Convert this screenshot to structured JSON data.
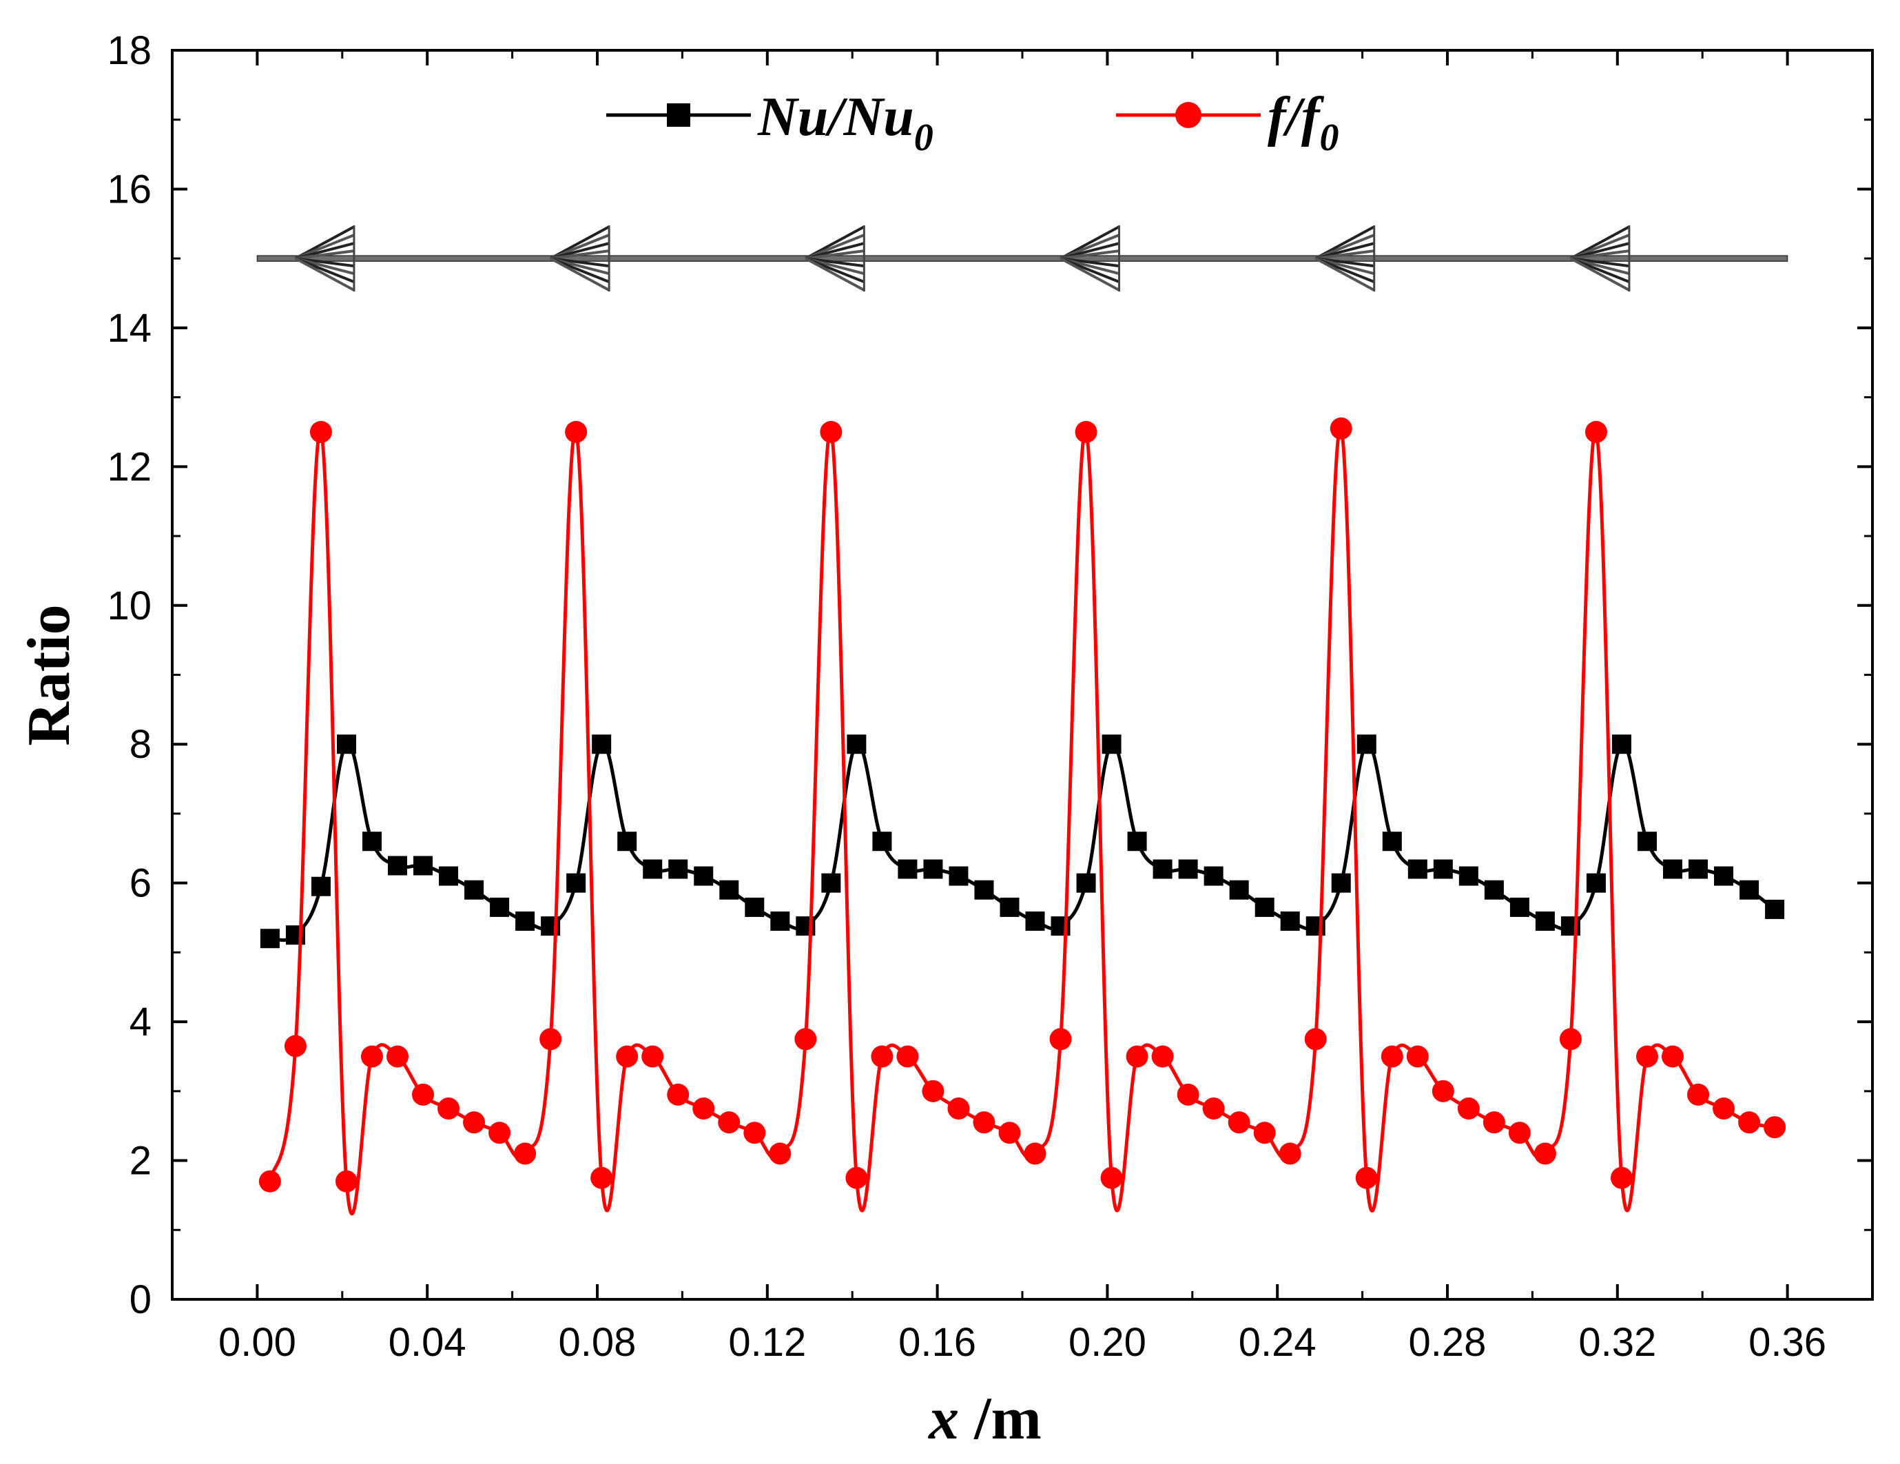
{
  "chart_data": {
    "type": "line",
    "title": "",
    "xlabel": {
      "var": "x",
      "unit": " /m"
    },
    "ylabel": "Ratio",
    "xlim": [
      -0.02,
      0.38
    ],
    "ylim": [
      0,
      18
    ],
    "xticks": [
      0.0,
      0.04,
      0.08,
      0.12,
      0.16,
      0.2,
      0.24,
      0.28,
      0.32,
      0.36
    ],
    "xtick_labels": [
      "0.00",
      "0.04",
      "0.08",
      "0.12",
      "0.16",
      "0.20",
      "0.24",
      "0.28",
      "0.32",
      "0.36"
    ],
    "yticks": [
      0,
      2,
      4,
      6,
      8,
      10,
      12,
      14,
      16,
      18
    ],
    "ytick_labels": [
      "0",
      "2",
      "4",
      "6",
      "8",
      "10",
      "12",
      "14",
      "16",
      "18"
    ],
    "legend_position": "top-center",
    "series": [
      {
        "name": "Nu/Nu0",
        "legend_main": "Nu/Nu",
        "legend_sub": "0",
        "color": "#000000",
        "marker": "square",
        "x": [
          0.003,
          0.009,
          0.015,
          0.021,
          0.027,
          0.033,
          0.039,
          0.045,
          0.051,
          0.057,
          0.063,
          0.069,
          0.075,
          0.081,
          0.087,
          0.093,
          0.099,
          0.105,
          0.111,
          0.117,
          0.123,
          0.129,
          0.135,
          0.141,
          0.147,
          0.153,
          0.159,
          0.165,
          0.171,
          0.177,
          0.183,
          0.189,
          0.195,
          0.201,
          0.207,
          0.213,
          0.219,
          0.225,
          0.231,
          0.237,
          0.243,
          0.249,
          0.255,
          0.261,
          0.267,
          0.273,
          0.279,
          0.285,
          0.291,
          0.297,
          0.303,
          0.309,
          0.315,
          0.321,
          0.327,
          0.333,
          0.339,
          0.345,
          0.351,
          0.357
        ],
        "y": [
          5.2,
          5.25,
          5.95,
          8.0,
          6.6,
          6.25,
          6.25,
          6.1,
          5.9,
          5.65,
          5.45,
          5.38,
          6.0,
          8.0,
          6.6,
          6.2,
          6.2,
          6.1,
          5.9,
          5.65,
          5.45,
          5.38,
          6.0,
          8.0,
          6.6,
          6.2,
          6.2,
          6.1,
          5.9,
          5.65,
          5.45,
          5.38,
          6.0,
          8.0,
          6.6,
          6.2,
          6.2,
          6.1,
          5.9,
          5.65,
          5.45,
          5.38,
          6.0,
          8.0,
          6.6,
          6.2,
          6.2,
          6.1,
          5.9,
          5.65,
          5.45,
          5.38,
          6.0,
          8.0,
          6.6,
          6.2,
          6.2,
          6.1,
          5.9,
          5.62
        ]
      },
      {
        "name": "f/f0",
        "legend_main": "f/f",
        "legend_sub": "0",
        "color": "#ff0000",
        "marker": "circle",
        "x": [
          0.003,
          0.009,
          0.015,
          0.021,
          0.027,
          0.033,
          0.039,
          0.045,
          0.051,
          0.057,
          0.063,
          0.069,
          0.075,
          0.081,
          0.087,
          0.093,
          0.099,
          0.105,
          0.111,
          0.117,
          0.123,
          0.129,
          0.135,
          0.141,
          0.147,
          0.153,
          0.159,
          0.165,
          0.171,
          0.177,
          0.183,
          0.189,
          0.195,
          0.201,
          0.207,
          0.213,
          0.219,
          0.225,
          0.231,
          0.237,
          0.243,
          0.249,
          0.255,
          0.261,
          0.267,
          0.273,
          0.279,
          0.285,
          0.291,
          0.297,
          0.303,
          0.309,
          0.315,
          0.321,
          0.327,
          0.333,
          0.339,
          0.345,
          0.351,
          0.357
        ],
        "y": [
          1.7,
          3.65,
          12.5,
          1.7,
          3.5,
          3.5,
          2.95,
          2.75,
          2.55,
          2.4,
          2.1,
          3.75,
          12.5,
          1.75,
          3.5,
          3.5,
          2.95,
          2.75,
          2.55,
          2.4,
          2.1,
          3.75,
          12.5,
          1.75,
          3.5,
          3.5,
          3.0,
          2.75,
          2.55,
          2.4,
          2.1,
          3.75,
          12.5,
          1.75,
          3.5,
          3.5,
          2.95,
          2.75,
          2.55,
          2.4,
          2.1,
          3.75,
          12.55,
          1.75,
          3.5,
          3.5,
          3.0,
          2.75,
          2.55,
          2.4,
          2.1,
          3.75,
          12.5,
          1.75,
          3.5,
          3.5,
          2.95,
          2.75,
          2.55,
          2.48
        ]
      }
    ],
    "annotation": {
      "description": "schematic of tube with periodic conical inserts pointing left",
      "axis_y": 15.0,
      "x_start": 0.0,
      "x_end": 0.36,
      "insert_x": [
        0.009,
        0.069,
        0.129,
        0.189,
        0.249,
        0.309
      ]
    }
  }
}
